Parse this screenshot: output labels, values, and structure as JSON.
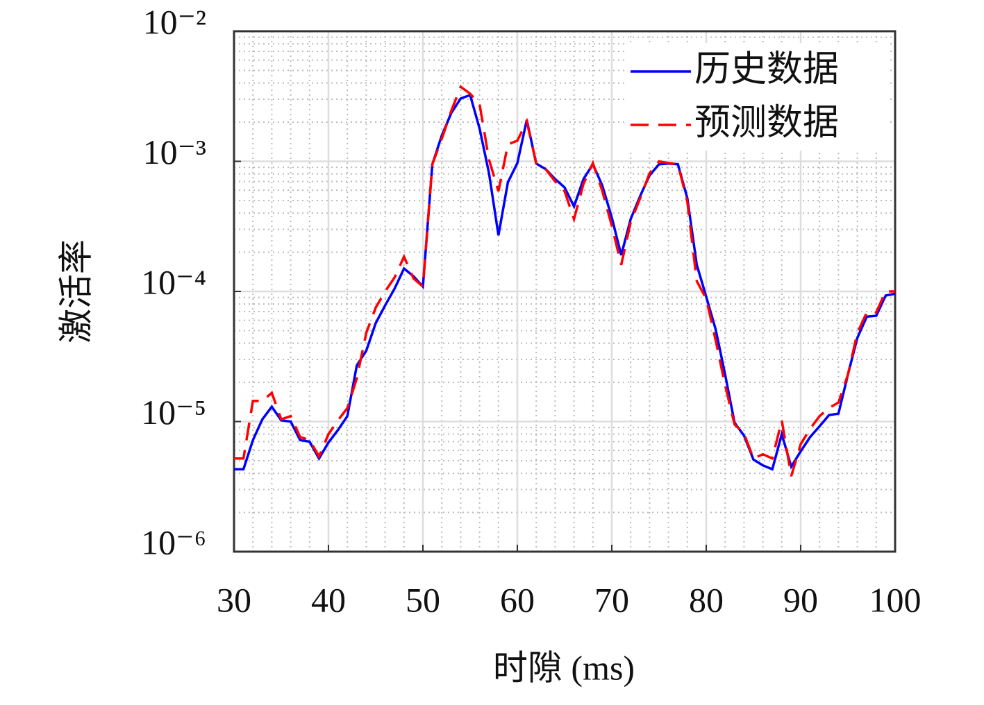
{
  "chart_data": {
    "type": "line",
    "xlabel": "时隙 (ms)",
    "ylabel": "激活率",
    "log_y": true,
    "grid": true,
    "minor_grid": true,
    "legend": "northeast",
    "xlim": [
      30,
      100
    ],
    "xticks": [
      30,
      40,
      50,
      60,
      70,
      80,
      90,
      100
    ],
    "ylim": [
      1e-06,
      0.01
    ],
    "yticks": [
      {
        "value": 1e-06,
        "label": "10⁻⁶"
      },
      {
        "value": 1e-05,
        "label": "10⁻⁵"
      },
      {
        "value": 0.0001,
        "label": "10⁻⁴"
      },
      {
        "value": 0.001,
        "label": "10⁻³"
      },
      {
        "value": 0.01,
        "label": "10⁻²"
      }
    ],
    "x": [
      30,
      31,
      32,
      33,
      34,
      35,
      36,
      37,
      38,
      39,
      40,
      41,
      42,
      43,
      44,
      45,
      46,
      47,
      48,
      49,
      50,
      51,
      52,
      53,
      54,
      55,
      56,
      57,
      58,
      59,
      60,
      61,
      62,
      63,
      64,
      65,
      66,
      67,
      68,
      69,
      70,
      71,
      72,
      73,
      74,
      75,
      76,
      77,
      78,
      79,
      80,
      81,
      82,
      83,
      84,
      85,
      86,
      87,
      88,
      89,
      90,
      91,
      92,
      93,
      94,
      95,
      96,
      97,
      98,
      99,
      100
    ],
    "series": [
      {
        "name": "历史数据",
        "color": "#0000ff",
        "dash": false,
        "values": [
          4.3e-06,
          4.3e-06,
          7.2e-06,
          1.04e-05,
          1.3e-05,
          1.02e-05,
          1e-05,
          7.2e-06,
          7e-06,
          5.2e-06,
          6.9e-06,
          8.6e-06,
          1.1e-05,
          2.7e-05,
          3.5e-05,
          5.7e-05,
          7.8e-05,
          0.000105,
          0.00015,
          0.000131,
          0.000109,
          0.00095,
          0.00158,
          0.00235,
          0.00304,
          0.00323,
          0.00179,
          0.00081,
          0.00027,
          0.00069,
          0.00097,
          0.00208,
          0.00096,
          0.00087,
          0.00073,
          0.00063,
          0.00045,
          0.00073,
          0.00095,
          0.00065,
          0.00037,
          0.00019,
          0.00036,
          0.00054,
          0.00078,
          0.00095,
          0.00096,
          0.00095,
          0.00052,
          0.00016,
          9.1e-05,
          5.1e-05,
          2.3e-05,
          9.8e-06,
          7.8e-06,
          5.1e-06,
          4.6e-06,
          4.3e-06,
          8e-06,
          4.5e-06,
          5.9e-06,
          7.6e-06,
          9.2e-06,
          1.12e-05,
          1.15e-05,
          2.29e-05,
          4.4e-05,
          6.4e-05,
          6.5e-05,
          9.3e-05,
          9.6e-05
        ]
      },
      {
        "name": "预测数据",
        "color": "#ff0000",
        "dash": true,
        "values": [
          5.2e-06,
          5.2e-06,
          1.44e-05,
          1.44e-05,
          1.66e-05,
          1.04e-05,
          1.1e-05,
          7.6e-06,
          7.2e-06,
          5.4e-06,
          8e-06,
          1.02e-05,
          1.27e-05,
          2.15e-05,
          4.79e-05,
          7.5e-05,
          0.0001,
          0.000128,
          0.000185,
          0.000126,
          0.000109,
          0.00095,
          0.00149,
          0.00244,
          0.00374,
          0.00331,
          0.00275,
          0.00103,
          0.00059,
          0.00135,
          0.00144,
          0.00203,
          0.00096,
          0.00087,
          0.0007,
          0.00059,
          0.00036,
          0.00067,
          0.00097,
          0.00059,
          0.00032,
          0.00016,
          0.00034,
          0.00052,
          0.00081,
          0.001,
          0.00097,
          0.00095,
          0.00049,
          0.00012,
          8.8e-05,
          4.2e-05,
          1.9e-05,
          9.5e-06,
          8.1e-06,
          5.2e-06,
          5.6e-06,
          5.2e-06,
          1.02e-05,
          3.8e-06,
          6.7e-06,
          8.8e-06,
          1.1e-05,
          1.27e-05,
          1.4e-05,
          2.29e-05,
          4.8e-05,
          6.9e-05,
          6.9e-05,
          0.0001,
          0.0001
        ]
      }
    ]
  }
}
